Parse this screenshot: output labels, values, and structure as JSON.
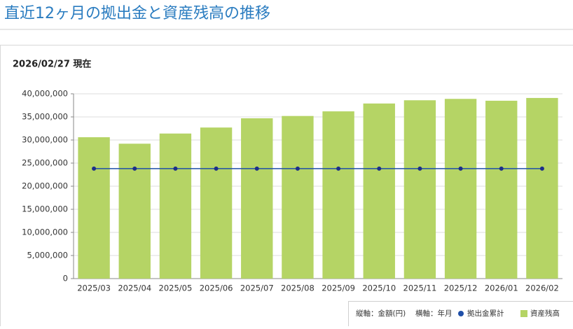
{
  "header": {
    "title": "直近12ヶ月の拠出金と資産残高の推移"
  },
  "chart_data": {
    "type": "bar",
    "subtitle": "2026/02/27 現在",
    "y_axis_label": "縦軸：金額(円)",
    "x_axis_label": "横軸：年月",
    "categories": [
      "2025/03",
      "2025/04",
      "2025/05",
      "2025/06",
      "2025/07",
      "2025/08",
      "2025/09",
      "2025/10",
      "2025/11",
      "2025/12",
      "2026/01",
      "2026/02"
    ],
    "series": [
      {
        "name": "資産残高",
        "type": "bar",
        "color": "#b5d465",
        "values": [
          30600000,
          29200000,
          31400000,
          32700000,
          34700000,
          35200000,
          36200000,
          37900000,
          38600000,
          38900000,
          38500000,
          39100000
        ]
      },
      {
        "name": "拠出金累計",
        "type": "line",
        "color": "#1f4fa8",
        "values": [
          23800000,
          23800000,
          23800000,
          23800000,
          23800000,
          23800000,
          23800000,
          23800000,
          23800000,
          23800000,
          23800000,
          23800000
        ]
      }
    ],
    "ylim": [
      0,
      40000000
    ],
    "yticks": [
      0,
      {
        "value": 5000000,
        "label": "5,000,000"
      },
      {
        "value": 10000000,
        "label": "10,000,000"
      },
      {
        "value": 15000000,
        "label": "15,000,000"
      },
      {
        "value": 20000000,
        "label": "20,000,000"
      },
      {
        "value": 25000000,
        "label": "25,000,000"
      },
      {
        "value": 30000000,
        "label": "30,000,000"
      },
      {
        "value": 35000000,
        "label": "35,000,000"
      },
      {
        "value": 40000000,
        "label": "40,000,000"
      }
    ],
    "grid": true
  }
}
